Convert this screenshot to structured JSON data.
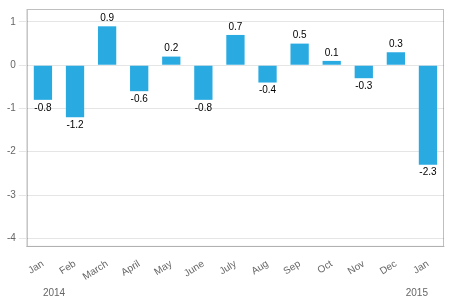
{
  "chart_data": {
    "type": "bar",
    "categories": [
      "Jan",
      "Feb",
      "March",
      "April",
      "May",
      "June",
      "July",
      "Aug",
      "Sep",
      "Oct",
      "Nov",
      "Dec",
      "Jan"
    ],
    "values": [
      -0.8,
      -1.2,
      0.9,
      -0.6,
      0.2,
      -0.8,
      0.7,
      -0.4,
      0.5,
      0.1,
      -0.3,
      0.3,
      -2.3
    ],
    "color": "#29abe2",
    "ylim": [
      -4.2,
      1.3
    ],
    "yticks": [
      -4,
      -3,
      -2,
      -1,
      0,
      1
    ],
    "grid": true,
    "data_labels": true,
    "annotations": [
      "2014",
      "2015"
    ]
  }
}
